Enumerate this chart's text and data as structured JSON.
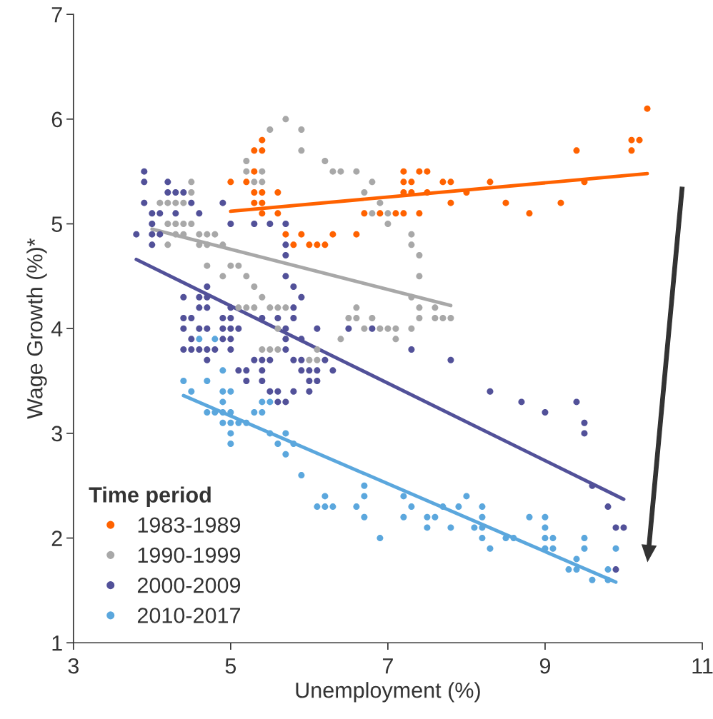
{
  "chart_data": {
    "type": "scatter",
    "xlabel": "Unemployment (%)",
    "ylabel": "Wage Growth (%)*",
    "legend_title": "Time period",
    "legend": "bottom left",
    "marker": "circle",
    "grid": false,
    "xlim": [
      3,
      11
    ],
    "ylim": [
      1,
      7
    ],
    "xticks": [
      3,
      5,
      7,
      9,
      11
    ],
    "yticks": [
      1,
      2,
      3,
      4,
      5,
      6,
      7
    ],
    "series": [
      {
        "name": "1983-1989",
        "color": "#ff6200",
        "x": [
          10.3,
          10.1,
          10.2,
          10.1,
          9.4,
          9.5,
          9.2,
          8.8,
          8.5,
          8.3,
          8.0,
          7.8,
          7.8,
          7.7,
          7.2,
          7.4,
          7.5,
          7.2,
          7.3,
          7.2,
          7.3,
          7.5,
          6.7,
          6.9,
          7.1,
          7.2,
          7.4,
          6.3,
          6.6,
          6.1,
          6.2,
          5.4,
          5.3,
          5.4,
          5.3,
          5.0,
          5.2,
          5.3,
          5.4,
          5.6,
          5.3,
          5.4,
          5.4,
          5.6,
          5.7,
          5.9,
          5.8,
          6.0
        ],
        "values": [
          6.1,
          5.8,
          5.8,
          5.7,
          5.7,
          5.4,
          5.2,
          5.1,
          5.2,
          5.4,
          5.3,
          5.2,
          5.4,
          5.4,
          5.5,
          5.5,
          5.5,
          5.4,
          5.4,
          5.3,
          5.3,
          5.3,
          5.1,
          5.1,
          5.1,
          5.1,
          5.1,
          4.9,
          4.9,
          4.8,
          4.8,
          5.8,
          5.7,
          5.7,
          5.5,
          5.4,
          5.4,
          5.3,
          5.3,
          5.3,
          5.2,
          5.2,
          5.1,
          5.1,
          4.9,
          4.9,
          4.8,
          4.8
        ]
      },
      {
        "name": "1990-1999",
        "color": "#a8a8a8",
        "x": [
          5.7,
          5.5,
          5.9,
          5.9,
          5.2,
          6.2,
          6.3,
          5.2,
          5.4,
          5.3,
          5.4,
          4.5,
          4.5,
          4.1,
          4.2,
          4.3,
          4.4,
          4.2,
          4.3,
          4.4,
          4.5,
          4.3,
          4.4,
          4.6,
          4.7,
          4.8,
          4.2,
          4.6,
          4.7,
          4.9,
          4.7,
          5.0,
          5.1,
          4.9,
          5.2,
          5.3,
          5.4,
          5.1,
          5.2,
          5.3,
          5.5,
          5.6,
          5.7,
          5.6,
          5.4,
          5.5,
          5.6,
          6.1,
          6.0,
          6.1,
          6.4,
          6.6,
          6.8,
          6.7,
          6.9,
          6.8,
          7.0,
          7.0,
          7.3,
          7.3,
          7.4,
          7.4,
          7.3,
          6.6,
          7.4,
          7.6,
          6.5,
          6.6,
          6.8,
          7.4,
          7.6,
          7.7,
          7.8,
          6.7,
          6.9,
          7.0,
          7.1,
          7.3,
          6.4,
          7.1
        ],
        "values": [
          6.0,
          5.9,
          5.9,
          5.7,
          5.6,
          5.6,
          5.5,
          5.5,
          5.5,
          5.4,
          5.4,
          5.4,
          5.3,
          5.2,
          5.2,
          5.2,
          5.2,
          5.0,
          5.0,
          5.0,
          5.0,
          4.9,
          4.9,
          4.9,
          4.9,
          4.9,
          4.8,
          4.8,
          4.8,
          4.8,
          4.6,
          4.6,
          4.6,
          4.5,
          4.5,
          4.4,
          4.3,
          4.2,
          4.2,
          4.2,
          4.2,
          4.2,
          4.2,
          4.0,
          3.8,
          3.8,
          3.8,
          3.8,
          3.7,
          3.7,
          5.5,
          5.5,
          5.4,
          5.3,
          5.2,
          5.1,
          5.1,
          5.0,
          4.9,
          4.8,
          4.7,
          4.5,
          4.3,
          4.2,
          4.2,
          4.2,
          4.1,
          4.1,
          4.1,
          4.1,
          4.1,
          4.1,
          4.1,
          4.0,
          4.0,
          4.0,
          4.0,
          4.0,
          3.9,
          3.9
        ]
      },
      {
        "name": "2000-2009",
        "color": "#525199",
        "x": [
          3.9,
          3.9,
          4.2,
          4.2,
          4.3,
          4.4,
          3.9,
          4.5,
          4.9,
          4.0,
          4.1,
          4.3,
          4.6,
          4.0,
          5.0,
          5.3,
          5.5,
          5.7,
          3.8,
          4.0,
          4.1,
          4.0,
          5.7,
          5.7,
          5.7,
          5.8,
          4.7,
          4.4,
          4.6,
          4.7,
          5.9,
          4.6,
          4.7,
          5.0,
          5.8,
          4.4,
          4.5,
          4.9,
          5.0,
          5.4,
          5.6,
          5.8,
          4.4,
          4.6,
          4.7,
          4.9,
          5.0,
          5.1,
          5.7,
          6.1,
          4.5,
          4.9,
          5.0,
          5.7,
          5.9,
          4.4,
          4.5,
          4.6,
          4.7,
          4.8,
          5.0,
          5.7,
          4.7,
          5.3,
          5.4,
          5.5,
          5.8,
          5.9,
          6.2,
          5.1,
          5.2,
          5.4,
          5.9,
          6.0,
          6.1,
          6.3,
          5.2,
          5.4,
          6.0,
          6.1,
          5.5,
          5.6,
          5.8,
          6.0,
          5.6,
          5.7,
          6.5,
          6.8,
          7.3,
          7.8,
          8.3,
          8.7,
          9.0,
          9.4,
          9.5,
          9.5,
          9.6,
          9.8,
          9.9,
          10.0,
          9.9
        ],
        "values": [
          5.5,
          5.4,
          5.4,
          5.3,
          5.3,
          5.3,
          5.2,
          5.2,
          5.2,
          5.1,
          5.1,
          5.1,
          5.1,
          5.0,
          5.0,
          5.0,
          5.0,
          5.0,
          4.9,
          4.9,
          4.9,
          4.8,
          4.8,
          4.7,
          4.5,
          4.4,
          4.4,
          4.3,
          4.3,
          4.3,
          4.3,
          4.2,
          4.2,
          4.2,
          4.2,
          4.1,
          4.1,
          4.1,
          4.1,
          4.1,
          4.1,
          4.1,
          4.0,
          4.0,
          4.0,
          4.0,
          4.0,
          4.0,
          4.0,
          4.0,
          3.9,
          3.9,
          3.9,
          3.9,
          3.9,
          3.8,
          3.8,
          3.8,
          3.8,
          3.8,
          3.8,
          3.8,
          3.7,
          3.7,
          3.7,
          3.7,
          3.7,
          3.7,
          3.7,
          3.6,
          3.6,
          3.6,
          3.6,
          3.6,
          3.6,
          3.6,
          3.5,
          3.5,
          3.5,
          3.5,
          3.4,
          3.4,
          3.4,
          3.4,
          3.3,
          3.3,
          4.0,
          4.0,
          3.8,
          3.7,
          3.4,
          3.3,
          3.2,
          3.3,
          3.1,
          3.0,
          2.5,
          2.3,
          2.1,
          2.1,
          1.7
        ]
      },
      {
        "name": "2010-2017",
        "color": "#5ba7dd",
        "x": [
          4.6,
          4.8,
          4.9,
          4.4,
          4.7,
          4.5,
          4.9,
          5.0,
          4.9,
          5.4,
          5.5,
          4.7,
          4.8,
          4.9,
          5.0,
          5.3,
          5.4,
          4.9,
          5.0,
          5.1,
          5.2,
          5.0,
          5.5,
          5.7,
          5.0,
          5.6,
          5.8,
          5.7,
          5.9,
          6.7,
          6.2,
          6.7,
          7.2,
          8.0,
          6.1,
          6.2,
          6.3,
          6.6,
          7.3,
          7.7,
          7.9,
          8.2,
          6.7,
          7.2,
          7.5,
          7.6,
          8.2,
          8.8,
          9.0,
          7.5,
          7.8,
          8.1,
          8.2,
          9.0,
          6.9,
          8.2,
          8.5,
          8.6,
          9.0,
          9.1,
          9.5,
          8.3,
          9.0,
          9.1,
          9.5,
          9.9,
          9.4,
          9.3,
          9.4,
          9.8,
          9.6,
          9.8
        ],
        "values": [
          3.9,
          3.9,
          3.6,
          3.5,
          3.5,
          3.4,
          3.4,
          3.4,
          3.3,
          3.3,
          3.3,
          3.2,
          3.2,
          3.2,
          3.2,
          3.2,
          3.2,
          3.1,
          3.1,
          3.1,
          3.1,
          3.0,
          3.0,
          3.0,
          2.9,
          2.9,
          2.9,
          2.8,
          2.6,
          2.5,
          2.4,
          2.4,
          2.4,
          2.4,
          2.3,
          2.3,
          2.3,
          2.3,
          2.3,
          2.3,
          2.3,
          2.3,
          2.2,
          2.2,
          2.2,
          2.2,
          2.2,
          2.2,
          2.2,
          2.1,
          2.1,
          2.1,
          2.1,
          2.1,
          2.0,
          2.0,
          2.0,
          2.0,
          2.0,
          2.0,
          2.0,
          1.9,
          1.9,
          1.9,
          1.9,
          1.9,
          1.8,
          1.7,
          1.7,
          1.7,
          1.6,
          1.6
        ]
      },
      {
        "color": "#ff6200",
        "type": "line",
        "marker": "none",
        "x": [
          5.0,
          10.3
        ],
        "values": [
          5.12,
          5.48
        ]
      },
      {
        "color": "#a8a8a8",
        "type": "line",
        "marker": "none",
        "x": [
          4.0,
          7.8
        ],
        "values": [
          4.95,
          4.22
        ]
      },
      {
        "color": "#525199",
        "type": "line",
        "marker": "none",
        "x": [
          3.8,
          10.0
        ],
        "values": [
          4.66,
          2.37
        ]
      },
      {
        "color": "#5ba7dd",
        "type": "line",
        "marker": "none",
        "x": [
          4.4,
          9.9
        ],
        "values": [
          3.36,
          1.58
        ]
      }
    ]
  }
}
